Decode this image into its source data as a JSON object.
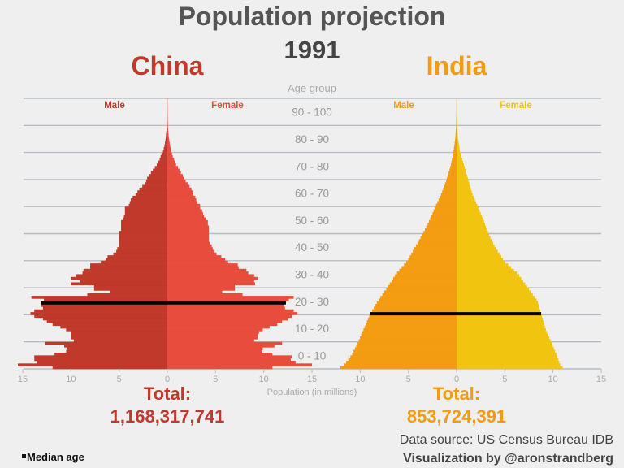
{
  "title": "Population projection",
  "year": "1991",
  "age_axis_label": "Age group",
  "x_axis_label": "Population (in millions)",
  "legend_label": "Median age",
  "source": "Data source: US Census Bureau IDB",
  "credit": "Visualization by @aronstrandberg",
  "chart_data": {
    "type": "bar",
    "orientation": "horizontal population pyramid",
    "grid": true,
    "age_groups": [
      "0 - 10",
      "10 - 20",
      "20 - 30",
      "30 - 40",
      "40 - 50",
      "50 - 60",
      "60 - 70",
      "70 - 80",
      "80 - 90",
      "90 - 100"
    ],
    "x_ticks": [
      15,
      10,
      5,
      0,
      5,
      10,
      15
    ],
    "xlim": [
      -15,
      15
    ],
    "ylim": [
      0,
      100
    ],
    "panels": [
      {
        "country": "China",
        "male_label": "Male",
        "female_label": "Female",
        "total_label": "Total:",
        "total": "1,168,317,741",
        "colors": {
          "title": "#c0392b",
          "male": "#c0392b",
          "female": "#e74c3c"
        },
        "median_age": 24.4,
        "age_start": 0,
        "male": [
          11.9,
          15.5,
          13.5,
          13.8,
          13.8,
          11.7,
          10.5,
          10.4,
          10.7,
          12.7,
          9.7,
          10,
          10,
          10,
          10.5,
          11.1,
          11.9,
          12.5,
          12.9,
          13.8,
          14.2,
          13.8,
          12.9,
          13.1,
          13.1,
          12.8,
          14.1,
          8.3,
          5.9,
          7.6,
          7.6,
          10,
          9.1,
          10,
          9.5,
          8.8,
          8.7,
          8,
          8,
          6.9,
          6.4,
          6.2,
          5.6,
          5.3,
          5.2,
          5,
          5,
          5,
          5,
          5,
          5,
          4.8,
          4.8,
          4.8,
          4.8,
          4.6,
          4.5,
          4.4,
          4.4,
          4.4,
          4,
          3.9,
          3.8,
          3.6,
          3.3,
          3.1,
          2.9,
          2.6,
          2.3,
          2.2,
          2.1,
          1.9,
          1.7,
          1.5,
          1.3,
          1.1,
          1,
          0.8,
          0.7,
          0.6,
          0.45,
          0.37,
          0.3,
          0.25,
          0.2,
          0.17,
          0.14,
          0.11,
          0.08,
          0.06,
          0.05,
          0.04,
          0.03,
          0.02,
          0.015,
          0.01,
          0.01,
          0.005,
          0.005,
          0
        ],
        "female": [
          10.9,
          15,
          13.3,
          12.8,
          12.9,
          10.9,
          9.8,
          9.9,
          11.1,
          11.9,
          9,
          9.4,
          9.4,
          9.5,
          9.9,
          10.6,
          11.4,
          11.9,
          12.5,
          12.9,
          13.5,
          13.1,
          12.2,
          12.1,
          12.3,
          12.6,
          13.1,
          7.8,
          5.7,
          7,
          7,
          9.1,
          9,
          9.4,
          9,
          8.4,
          8.2,
          7.4,
          7.3,
          6.3,
          6,
          5.6,
          5.1,
          4.9,
          4.7,
          4.6,
          4.4,
          4.3,
          4.3,
          4.3,
          4.3,
          4.3,
          4.3,
          4.2,
          4.2,
          4,
          3.8,
          3.7,
          3.6,
          3.4,
          3.4,
          3.1,
          3,
          2.9,
          2.7,
          2.6,
          2.5,
          2.3,
          2.1,
          1.9,
          1.75,
          1.6,
          1.4,
          1.25,
          1.1,
          0.9,
          0.8,
          0.7,
          0.56,
          0.48,
          0.4,
          0.34,
          0.29,
          0.24,
          0.2,
          0.16,
          0.13,
          0.1,
          0.08,
          0.06,
          0.05,
          0.04,
          0.03,
          0.02,
          0.015,
          0.01,
          0.01,
          0.005,
          0.005,
          0
        ]
      },
      {
        "country": "India",
        "male_label": "Male",
        "female_label": "Female",
        "total_label": "Total:",
        "total": "853,724,391",
        "colors": {
          "title": "#f39c12",
          "male": "#f39c12",
          "female": "#f1c40f"
        },
        "median_age": 20.4,
        "ages": [
          0,
          1,
          5,
          10,
          15,
          20,
          25,
          30,
          35,
          40,
          45,
          50,
          55,
          60,
          65,
          70,
          75,
          80,
          85,
          90,
          95,
          100
        ],
        "male": [
          12.3,
          11.8,
          10.9,
          10.2,
          9.6,
          9.0,
          8.2,
          7.2,
          6.3,
          5.1,
          4.3,
          3.5,
          2.8,
          2.2,
          1.55,
          1.04,
          0.62,
          0.34,
          0.14,
          0.05,
          0.01,
          0
        ],
        "female": [
          11.2,
          10.8,
          10.4,
          9.8,
          9.2,
          8.8,
          8.4,
          7.4,
          6.4,
          4.9,
          4.0,
          3.3,
          2.8,
          2.2,
          1.6,
          1.2,
          0.8,
          0.37,
          0.15,
          0.05,
          0.01,
          0
        ]
      }
    ]
  }
}
